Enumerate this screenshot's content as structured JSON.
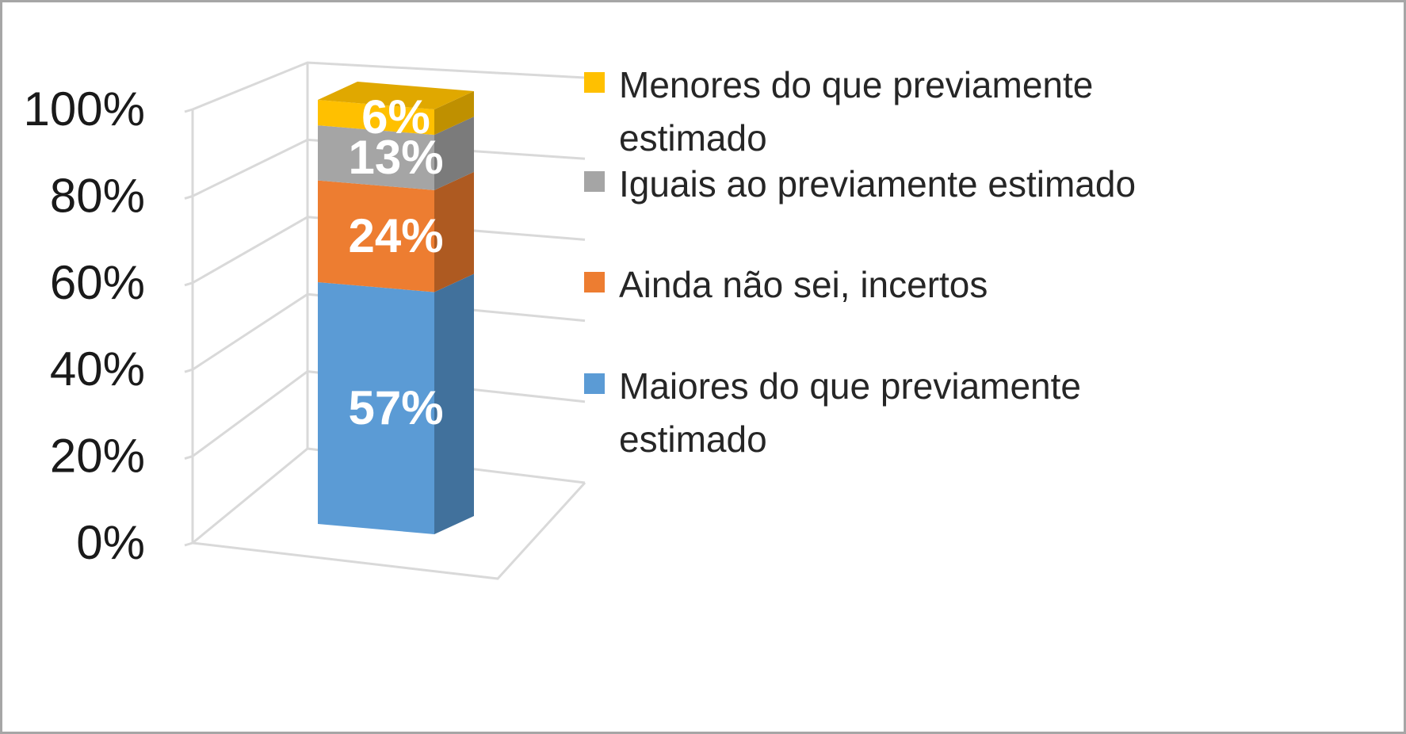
{
  "chart_data": {
    "type": "bar",
    "stacked": true,
    "percent_stacked": true,
    "three_d": true,
    "categories": [
      ""
    ],
    "ylim": [
      0,
      100
    ],
    "y_ticks": [
      "0%",
      "20%",
      "40%",
      "60%",
      "80%",
      "100%"
    ],
    "grid": true,
    "legend_position": "right",
    "series": [
      {
        "name": "Maiores do que previamente estimado",
        "values": [
          57
        ],
        "label": "57%",
        "color": "#5b9bd5",
        "side_color": "#41719c",
        "top_color": "#7cafdd"
      },
      {
        "name": "Ainda não sei, incertos",
        "values": [
          24
        ],
        "label": "24%",
        "color": "#ed7d31",
        "side_color": "#ae5a21",
        "top_color": "#f19a5b"
      },
      {
        "name": "Iguais ao previamente estimado",
        "values": [
          13
        ],
        "label": "13%",
        "color": "#a5a5a5",
        "side_color": "#7b7b7b",
        "top_color": "#bdbdbd"
      },
      {
        "name": "Menores do que previamente estimado",
        "values": [
          6
        ],
        "label": "6%",
        "color": "#ffc000",
        "side_color": "#bf9000",
        "top_color": "#e0a800"
      }
    ],
    "legend": [
      {
        "series_index": 3,
        "lines": [
          "Menores do que previamente",
          "estimado"
        ]
      },
      {
        "series_index": 2,
        "lines": [
          "Iguais ao previamente estimado"
        ]
      },
      {
        "series_index": 1,
        "lines": [
          "Ainda não sei, incertos"
        ]
      },
      {
        "series_index": 0,
        "lines": [
          "Maiores do que previamente",
          "estimado"
        ]
      }
    ]
  }
}
